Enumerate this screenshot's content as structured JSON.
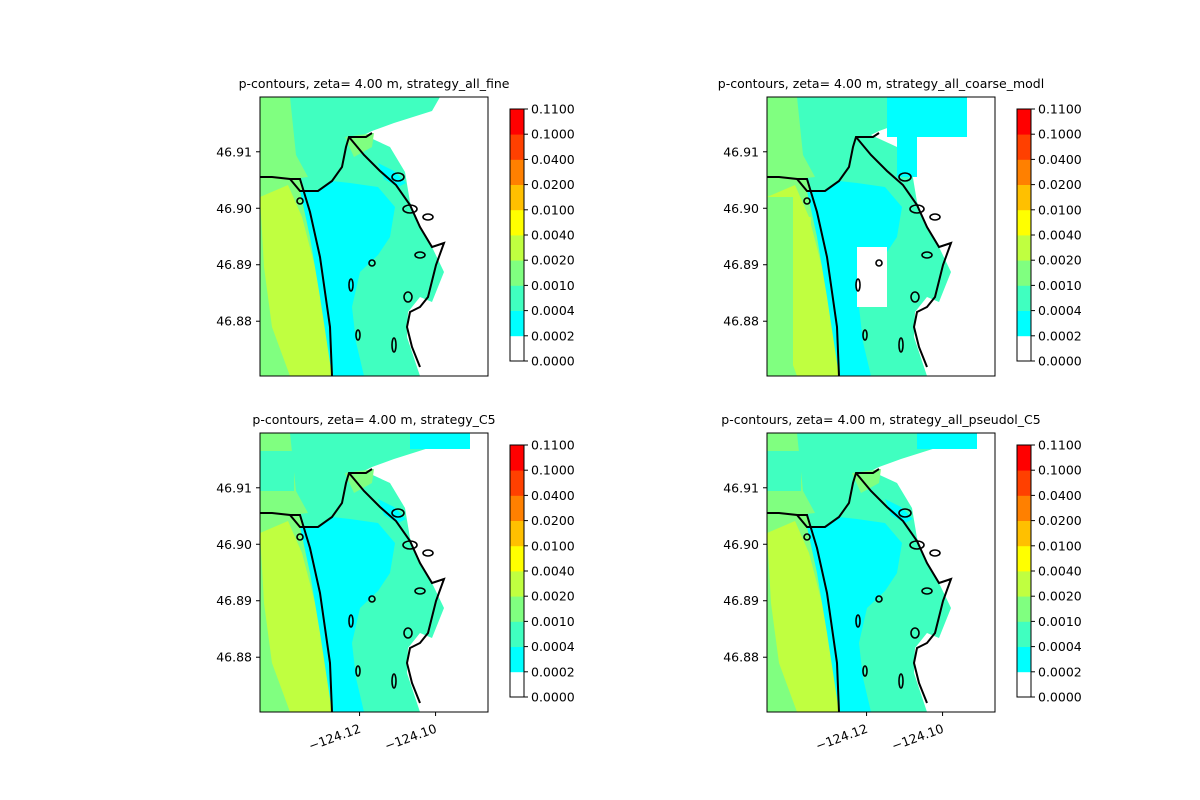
{
  "chart_data": [
    {
      "type": "heatmap",
      "title": "p-contours, zeta= 4.00 m, strategy_all_fine",
      "variant": "fine",
      "yticks": [
        "46.91",
        "46.90",
        "46.89",
        "46.88"
      ],
      "ytick_values": [
        46.91,
        46.9,
        46.89,
        46.88
      ],
      "xticks": [],
      "xtick_values": [],
      "ylim": [
        46.8703,
        46.9197
      ],
      "xlim": [
        -124.1462,
        -124.0862
      ]
    },
    {
      "type": "heatmap",
      "title": "p-contours, zeta= 4.00 m, strategy_all_coarse_modl",
      "variant": "coarse",
      "yticks": [
        "46.91",
        "46.90",
        "46.89",
        "46.88"
      ],
      "ytick_values": [
        46.91,
        46.9,
        46.89,
        46.88
      ],
      "xticks": [],
      "xtick_values": [],
      "ylim": [
        46.8703,
        46.9197
      ],
      "xlim": [
        -124.1462,
        -124.0862
      ]
    },
    {
      "type": "heatmap",
      "title": "p-contours, zeta= 4.00 m, strategy_C5",
      "variant": "c5",
      "yticks": [
        "46.91",
        "46.90",
        "46.89",
        "46.88"
      ],
      "ytick_values": [
        46.91,
        46.9,
        46.89,
        46.88
      ],
      "xticks": [
        "−124.12",
        "−124.10"
      ],
      "xtick_values": [
        -124.12,
        -124.1
      ],
      "ylim": [
        46.8703,
        46.9197
      ],
      "xlim": [
        -124.1462,
        -124.0862
      ]
    },
    {
      "type": "heatmap",
      "title": "p-contours, zeta= 4.00 m, strategy_all_pseudol_C5",
      "variant": "pseudo",
      "yticks": [
        "46.91",
        "46.90",
        "46.89",
        "46.88"
      ],
      "ytick_values": [
        46.91,
        46.9,
        46.89,
        46.88
      ],
      "xticks": [
        "−124.12",
        "−124.10"
      ],
      "xtick_values": [
        -124.12,
        -124.1
      ],
      "ylim": [
        46.8703,
        46.9197
      ],
      "xlim": [
        -124.1462,
        -124.0862
      ]
    }
  ],
  "colorbar": {
    "levels": [
      "0.0000",
      "0.0002",
      "0.0004",
      "0.0010",
      "0.0020",
      "0.0040",
      "0.0100",
      "0.0200",
      "0.0400",
      "0.1000",
      "0.1100"
    ],
    "colors": [
      "#ffffff",
      "#00ffff",
      "#40ffc0",
      "#80ff80",
      "#c0ff40",
      "#ffff00",
      "#ffc000",
      "#ff8000",
      "#ff4000",
      "#ff0000"
    ]
  }
}
